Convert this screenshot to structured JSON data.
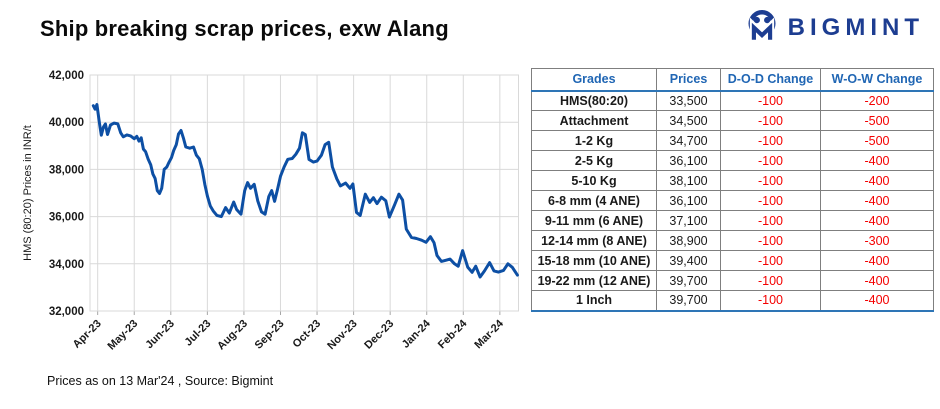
{
  "page": {
    "title": "Ship breaking scrap prices, exw Alang",
    "footer": "Prices as on 13 Mar'24 , Source:  Bigmint"
  },
  "logo": {
    "text": "BIGMINT",
    "icon": "bigmint-circle-m-icon",
    "color": "#1d3d91"
  },
  "colors": {
    "brand_navy": "#1d3d91",
    "line_blue": "#0d4fa4",
    "table_header_blue": "#2066b4",
    "table_border_blue": "#2e75b6",
    "negative_red": "#f40000",
    "grid_gray": "#d9d9d9"
  },
  "chart_data": {
    "type": "line",
    "title": "",
    "xlabel": "",
    "ylabel": "HMS (80:20) Prices in INR/t",
    "grid": true,
    "legend": "none",
    "ylim": [
      32000,
      42000
    ],
    "xlim": [
      -0.21,
      11.51
    ],
    "y_ticks": [
      {
        "value": 42000,
        "label": "42,000"
      },
      {
        "value": 40000,
        "label": "40,000"
      },
      {
        "value": 38000,
        "label": "38,000"
      },
      {
        "value": 36000,
        "label": "36,000"
      },
      {
        "value": 34000,
        "label": "34,000"
      },
      {
        "value": 32000,
        "label": "32,000"
      }
    ],
    "x_tick_labels": [
      "Apr-23",
      "May-23",
      "Jun-23",
      "Jul-23",
      "Aug-23",
      "Sep-23",
      "Oct-23",
      "Nov-23",
      "Dec-23",
      "Jan-24",
      "Feb-24",
      "Mar-24"
    ],
    "series": [
      {
        "name": "HMS (80:20) exw Alang",
        "color": "#0d4fa4",
        "points": [
          [
            -0.12,
            40700
          ],
          [
            -0.07,
            40550
          ],
          [
            -0.02,
            40750
          ],
          [
            0.05,
            39950
          ],
          [
            0.1,
            39450
          ],
          [
            0.16,
            39800
          ],
          [
            0.21,
            39930
          ],
          [
            0.27,
            39480
          ],
          [
            0.35,
            39880
          ],
          [
            0.45,
            39960
          ],
          [
            0.55,
            39930
          ],
          [
            0.63,
            39550
          ],
          [
            0.7,
            39380
          ],
          [
            0.8,
            39460
          ],
          [
            0.9,
            39420
          ],
          [
            1.0,
            39300
          ],
          [
            1.07,
            39400
          ],
          [
            1.13,
            39200
          ],
          [
            1.19,
            39340
          ],
          [
            1.25,
            38860
          ],
          [
            1.31,
            38750
          ],
          [
            1.38,
            38440
          ],
          [
            1.45,
            38200
          ],
          [
            1.51,
            37800
          ],
          [
            1.57,
            37620
          ],
          [
            1.63,
            37100
          ],
          [
            1.69,
            36980
          ],
          [
            1.75,
            37200
          ],
          [
            1.82,
            38000
          ],
          [
            1.89,
            38100
          ],
          [
            1.95,
            38300
          ],
          [
            2.02,
            38500
          ],
          [
            2.08,
            38800
          ],
          [
            2.15,
            39050
          ],
          [
            2.21,
            39500
          ],
          [
            2.28,
            39650
          ],
          [
            2.35,
            39300
          ],
          [
            2.41,
            38950
          ],
          [
            2.52,
            38900
          ],
          [
            2.62,
            38950
          ],
          [
            2.7,
            38600
          ],
          [
            2.78,
            38450
          ],
          [
            2.86,
            38000
          ],
          [
            2.93,
            37370
          ],
          [
            3.0,
            36870
          ],
          [
            3.08,
            36450
          ],
          [
            3.16,
            36240
          ],
          [
            3.26,
            36050
          ],
          [
            3.38,
            36000
          ],
          [
            3.5,
            36380
          ],
          [
            3.6,
            36150
          ],
          [
            3.72,
            36620
          ],
          [
            3.8,
            36300
          ],
          [
            3.92,
            36100
          ],
          [
            4.02,
            37100
          ],
          [
            4.1,
            37440
          ],
          [
            4.18,
            37200
          ],
          [
            4.28,
            37370
          ],
          [
            4.38,
            36660
          ],
          [
            4.48,
            36200
          ],
          [
            4.58,
            36100
          ],
          [
            4.68,
            36850
          ],
          [
            4.76,
            37100
          ],
          [
            4.84,
            36650
          ],
          [
            4.92,
            37170
          ],
          [
            5.0,
            37710
          ],
          [
            5.1,
            38100
          ],
          [
            5.2,
            38430
          ],
          [
            5.32,
            38460
          ],
          [
            5.42,
            38640
          ],
          [
            5.52,
            38900
          ],
          [
            5.6,
            39550
          ],
          [
            5.68,
            39480
          ],
          [
            5.78,
            38420
          ],
          [
            5.9,
            38310
          ],
          [
            6.0,
            38350
          ],
          [
            6.12,
            38600
          ],
          [
            6.22,
            39050
          ],
          [
            6.32,
            39150
          ],
          [
            6.42,
            38100
          ],
          [
            6.54,
            37600
          ],
          [
            6.64,
            37300
          ],
          [
            6.78,
            37420
          ],
          [
            6.9,
            37200
          ],
          [
            6.98,
            37380
          ],
          [
            7.08,
            36180
          ],
          [
            7.18,
            36050
          ],
          [
            7.32,
            36950
          ],
          [
            7.44,
            36600
          ],
          [
            7.54,
            36800
          ],
          [
            7.64,
            36550
          ],
          [
            7.76,
            36820
          ],
          [
            7.88,
            36670
          ],
          [
            7.98,
            35980
          ],
          [
            8.12,
            36500
          ],
          [
            8.24,
            36950
          ],
          [
            8.34,
            36700
          ],
          [
            8.44,
            35470
          ],
          [
            8.58,
            35120
          ],
          [
            8.72,
            35070
          ],
          [
            8.86,
            35000
          ],
          [
            8.98,
            34910
          ],
          [
            9.1,
            35150
          ],
          [
            9.2,
            34900
          ],
          [
            9.28,
            34350
          ],
          [
            9.4,
            34100
          ],
          [
            9.52,
            34150
          ],
          [
            9.64,
            34200
          ],
          [
            9.76,
            34000
          ],
          [
            9.86,
            33900
          ],
          [
            9.98,
            34560
          ],
          [
            10.12,
            33860
          ],
          [
            10.24,
            33640
          ],
          [
            10.34,
            33900
          ],
          [
            10.46,
            33440
          ],
          [
            10.58,
            33700
          ],
          [
            10.72,
            34050
          ],
          [
            10.84,
            33700
          ],
          [
            10.96,
            33650
          ],
          [
            11.1,
            33720
          ],
          [
            11.22,
            34000
          ],
          [
            11.34,
            33850
          ],
          [
            11.48,
            33520
          ]
        ]
      }
    ]
  },
  "table": {
    "headers": [
      "Grades",
      "Prices",
      "D-O-D Change",
      "W-O-W Change"
    ],
    "rows": [
      {
        "grade": "HMS(80:20)",
        "price": "33,500",
        "dod": "-100",
        "wow": "-200"
      },
      {
        "grade": "Attachment",
        "price": "34,500",
        "dod": "-100",
        "wow": "-500"
      },
      {
        "grade": "1-2 Kg",
        "price": "34,700",
        "dod": "-100",
        "wow": "-500"
      },
      {
        "grade": "2-5 Kg",
        "price": "36,100",
        "dod": "-100",
        "wow": "-400"
      },
      {
        "grade": "5-10 Kg",
        "price": "38,100",
        "dod": "-100",
        "wow": "-400"
      },
      {
        "grade": "6-8 mm (4 ANE)",
        "price": "36,100",
        "dod": "-100",
        "wow": "-400"
      },
      {
        "grade": "9-11 mm (6 ANE)",
        "price": "37,100",
        "dod": "-100",
        "wow": "-400"
      },
      {
        "grade": "12-14 mm (8 ANE)",
        "price": "38,900",
        "dod": "-100",
        "wow": "-300"
      },
      {
        "grade": "15-18 mm (10 ANE)",
        "price": "39,400",
        "dod": "-100",
        "wow": "-400"
      },
      {
        "grade": "19-22 mm (12 ANE)",
        "price": "39,700",
        "dod": "-100",
        "wow": "-400"
      },
      {
        "grade": "1 Inch",
        "price": "39,700",
        "dod": "-100",
        "wow": "-400"
      }
    ]
  }
}
